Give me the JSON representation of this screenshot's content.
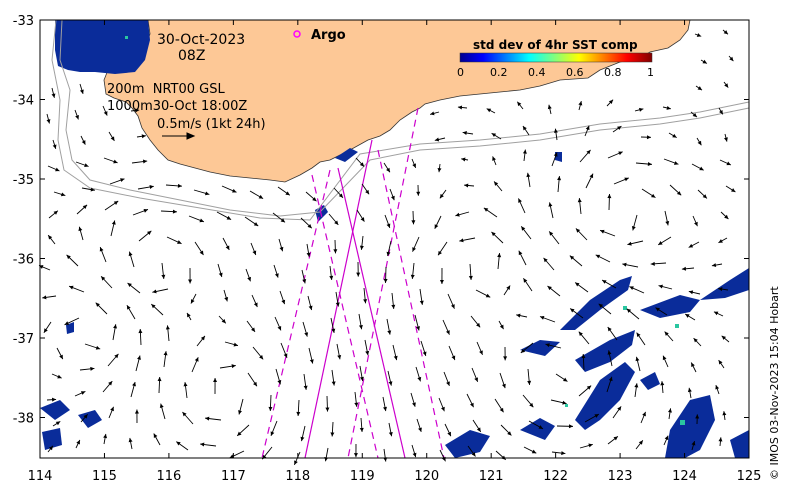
{
  "map": {
    "date": "30-Oct-2023",
    "hour": "08Z",
    "argo_label": "Argo",
    "colorbar": {
      "title": "std dev of 4hr SST comp",
      "ticks": [
        "0",
        "0.2",
        "0.4",
        "0.6",
        "0.8",
        "1"
      ]
    },
    "model_lines": [
      "200m  NRT00 GSL",
      "1000m30-Oct 18:00Z"
    ],
    "scale_label": "0.5m/s (1kt 24h)",
    "lat_ticks": [
      "-33",
      "-34",
      "-35",
      "-36",
      "-37",
      "-38"
    ],
    "lon_ticks": [
      "114",
      "115",
      "116",
      "117",
      "118",
      "119",
      "120",
      "121",
      "122",
      "123",
      "124",
      "125"
    ],
    "copyright": "© IMOS 03-Nov-2023 15:04 Hobart",
    "colors": {
      "land": "#fdc896",
      "sst_blue": "#0a2c9a",
      "track": "#cc00cc",
      "argo_marker": "#ff00ff"
    }
  }
}
